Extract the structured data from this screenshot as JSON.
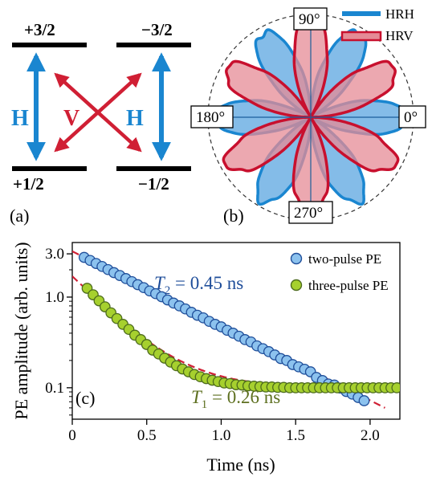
{
  "panel_a": {
    "label": "(a)",
    "levels": [
      "+3/2",
      "−3/2",
      "+1/2",
      "−1/2"
    ],
    "pol_left": "H",
    "pol_cross": "V",
    "pol_right": "H",
    "colors": {
      "H": "#1a86d0",
      "V": "#d01f34",
      "level": "#000000"
    }
  },
  "panel_b": {
    "label": "(b)",
    "angles": [
      "90°",
      "180°",
      "0°",
      "270°"
    ],
    "legend": [
      {
        "name": "HRH",
        "color": "#1a86d0",
        "fill": "#6fb0e4"
      },
      {
        "name": "HRV",
        "color": "#d01f34",
        "fill": "#e58b96"
      }
    ]
  },
  "chart_data": {
    "type": "scatter",
    "label": "(c)",
    "xlabel": "Time (ns)",
    "ylabel": "PE amplitude (arb. units)",
    "xlim": [
      0,
      2.2
    ],
    "ylim": [
      0.045,
      4.0
    ],
    "yscale": "log",
    "xticks": [
      "0",
      "0.5",
      "1.0",
      "1.5",
      "2.0"
    ],
    "yticks": [
      "0.1",
      "1.0",
      "3.0"
    ],
    "annotations": {
      "t2": {
        "sym": "T",
        "sub": "2",
        "rest": " = 0.45 ns",
        "color": "#1f4e9a"
      },
      "t1": {
        "sym": "T",
        "sub": "1",
        "rest": " = 0.26 ns",
        "color": "#5e7020"
      }
    },
    "fit_color": "#d01f34",
    "series": [
      {
        "name": "two-pulse PE",
        "color": "#8cc2ee",
        "edge": "#1f4e9a",
        "x": [
          0.08,
          0.12,
          0.16,
          0.2,
          0.24,
          0.28,
          0.32,
          0.36,
          0.4,
          0.44,
          0.48,
          0.52,
          0.56,
          0.6,
          0.64,
          0.68,
          0.72,
          0.76,
          0.8,
          0.84,
          0.88,
          0.92,
          0.96,
          1.0,
          1.04,
          1.08,
          1.12,
          1.16,
          1.2,
          1.24,
          1.28,
          1.32,
          1.36,
          1.4,
          1.44,
          1.48,
          1.52,
          1.56,
          1.6,
          1.64,
          1.68,
          1.72,
          1.76,
          1.8,
          1.84,
          1.88,
          1.92,
          1.96
        ],
        "y": [
          2.74,
          2.54,
          2.35,
          2.18,
          2.01,
          1.86,
          1.73,
          1.6,
          1.48,
          1.37,
          1.27,
          1.17,
          1.09,
          1.01,
          0.93,
          0.86,
          0.8,
          0.74,
          0.68,
          0.63,
          0.59,
          0.54,
          0.5,
          0.47,
          0.43,
          0.4,
          0.37,
          0.34,
          0.32,
          0.29,
          0.27,
          0.25,
          0.23,
          0.21,
          0.2,
          0.18,
          0.17,
          0.16,
          0.15,
          0.13,
          0.12,
          0.11,
          0.107,
          0.099,
          0.091,
          0.085,
          0.078,
          0.072
        ],
        "fit_x": [
          0,
          2.1
        ],
        "fit_y": [
          3.2,
          0.06
        ]
      },
      {
        "name": "three-pulse PE",
        "color": "#a6d02e",
        "edge": "#4d6b1d",
        "x": [
          0.1,
          0.14,
          0.18,
          0.22,
          0.26,
          0.3,
          0.34,
          0.38,
          0.42,
          0.46,
          0.5,
          0.54,
          0.58,
          0.62,
          0.66,
          0.7,
          0.74,
          0.78,
          0.82,
          0.86,
          0.9,
          0.94,
          0.98,
          1.02,
          1.06,
          1.1,
          1.14,
          1.18,
          1.22,
          1.26,
          1.3,
          1.34,
          1.38,
          1.42,
          1.46,
          1.5,
          1.54,
          1.58,
          1.62,
          1.66,
          1.7,
          1.74,
          1.78,
          1.82,
          1.86,
          1.9,
          1.94,
          1.98,
          2.02,
          2.06,
          2.1,
          2.14,
          2.18
        ],
        "y": [
          1.25,
          1.06,
          0.91,
          0.78,
          0.67,
          0.58,
          0.5,
          0.44,
          0.38,
          0.34,
          0.3,
          0.26,
          0.236,
          0.212,
          0.192,
          0.175,
          0.161,
          0.15,
          0.14,
          0.132,
          0.126,
          0.121,
          0.117,
          0.113,
          0.111,
          0.108,
          0.107,
          0.105,
          0.104,
          0.103,
          0.102,
          0.102,
          0.101,
          0.101,
          0.1,
          0.1,
          0.1,
          0.1,
          0.1,
          0.1,
          0.1,
          0.1,
          0.1,
          0.1,
          0.1,
          0.1,
          0.1,
          0.1,
          0.1,
          0.1,
          0.1,
          0.1,
          0.1
        ]
      }
    ]
  }
}
